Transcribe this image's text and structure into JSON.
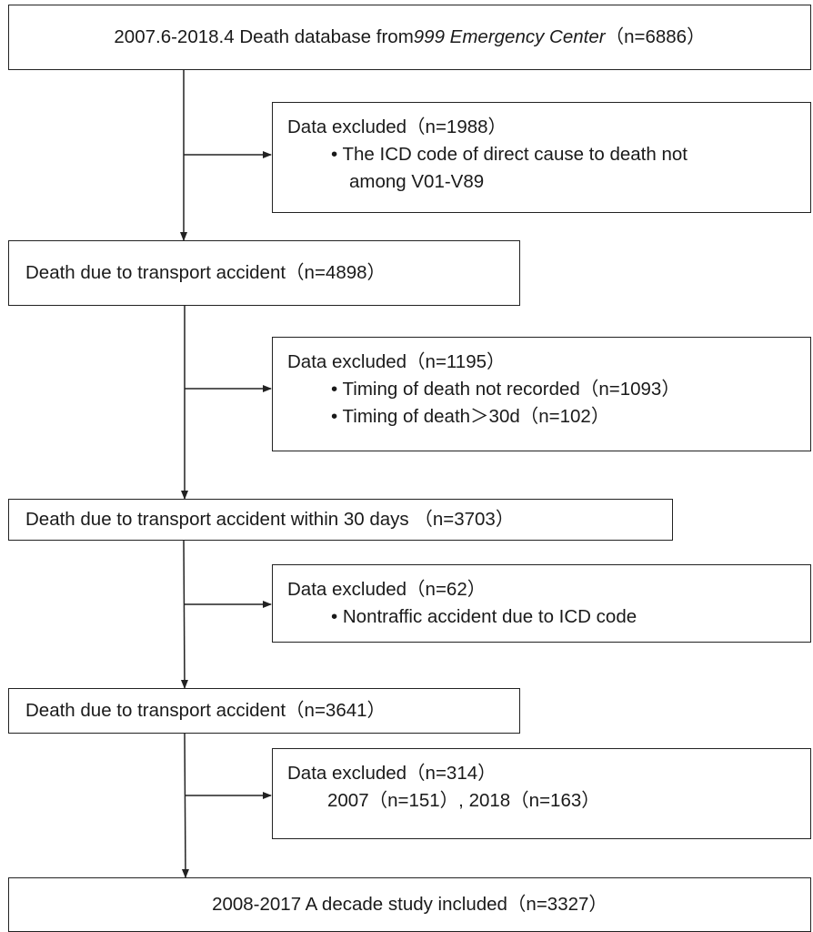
{
  "flowchart": {
    "box1": {
      "pre": "2007.6-2018.4 Death database from ",
      "italic": "999 Emergency Center",
      "post": "（n=6886）"
    },
    "excl1": {
      "title": "Data excluded（n=1988）",
      "line1": "• The ICD code of direct cause to death not",
      "line2": "among V01-V89"
    },
    "box2": "Death due to transport accident（n=4898）",
    "excl2": {
      "title": "Data excluded（n=1195）",
      "line1": "• Timing of death not recorded（n=1093）",
      "line2": "• Timing of death＞30d（n=102）"
    },
    "box3": "Death due to transport accident within 30 days （n=3703）",
    "excl3": {
      "title": "Data excluded（n=62）",
      "line1": "• Nontraffic accident due to ICD code"
    },
    "box4": "Death due to transport accident（n=3641）",
    "excl4": {
      "title": "Data excluded（n=314）",
      "line1": "2007（n=151）, 2018（n=163）"
    },
    "box5": "2008-2017 A decade study included（n=3327）"
  }
}
